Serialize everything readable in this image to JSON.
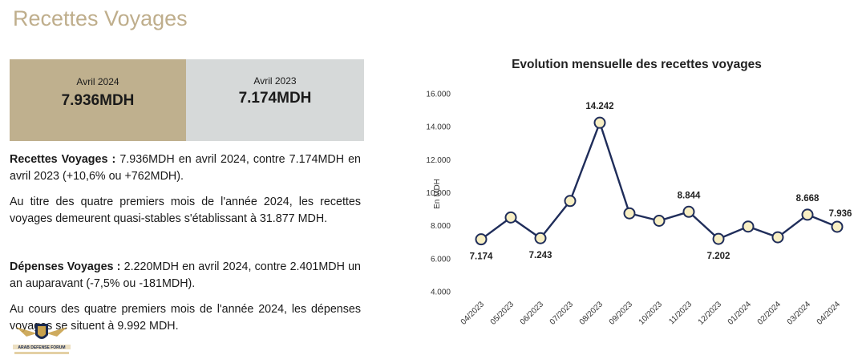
{
  "page": {
    "title": "Recettes Voyages"
  },
  "cards": [
    {
      "period": "Avril 2024",
      "value": "7.936MDH"
    },
    {
      "period": "Avril 2023",
      "value": "7.174MDH"
    }
  ],
  "paragraphs": {
    "p1_label": "Recettes Voyages :",
    "p1_text": " 7.936MDH en avril 2024, contre 7.174MDH en avril 2023 (+10,6% ou +762MDH).",
    "p2_text": "Au titre des quatre premiers mois de l'année 2024, les recettes voyages demeurent quasi-stables s'établissant à 31.877 MDH.",
    "p3_label": "Dépenses Voyages :",
    "p3_text": " 2.220MDH en avril 2024, contre 2.401MDH un an auparavant (-7,5% ou -181MDH).",
    "p4_text": "Au cours des quatre premiers mois de l'année 2024, les dépenses voyages se situent à 9.992 MDH."
  },
  "logo": {
    "text": "ARAB DEFENSE FORUM",
    "icon": "eagle-shield-logo"
  },
  "chart_data": {
    "type": "line",
    "title": "Evolution mensuelle des recettes voyages",
    "ylabel": "En MDH",
    "xlabel": "",
    "ylim": [
      4000,
      16000
    ],
    "yticks": [
      "4.000",
      "6.000",
      "8.000",
      "10.000",
      "12.000",
      "14.000",
      "16.000"
    ],
    "ytick_values": [
      4000,
      6000,
      8000,
      10000,
      12000,
      14000,
      16000
    ],
    "grid": false,
    "legend": "none",
    "categories": [
      "04/2023",
      "05/2023",
      "06/2023",
      "07/2023",
      "08/2023",
      "09/2023",
      "10/2023",
      "11/2023",
      "12/2023",
      "01/2024",
      "02/2024",
      "03/2024",
      "04/2024"
    ],
    "values": [
      7174,
      8500,
      7243,
      9500,
      14242,
      8750,
      8300,
      8844,
      7202,
      7950,
      7300,
      8668,
      7936
    ],
    "data_labels": [
      "7.174",
      "",
      "7.243",
      "",
      "14.242",
      "",
      "",
      "8.844",
      "7.202",
      "",
      "",
      "8.668",
      "7.936"
    ],
    "line_color": "#1f2d5a",
    "marker_fill": "#f8efc4"
  }
}
